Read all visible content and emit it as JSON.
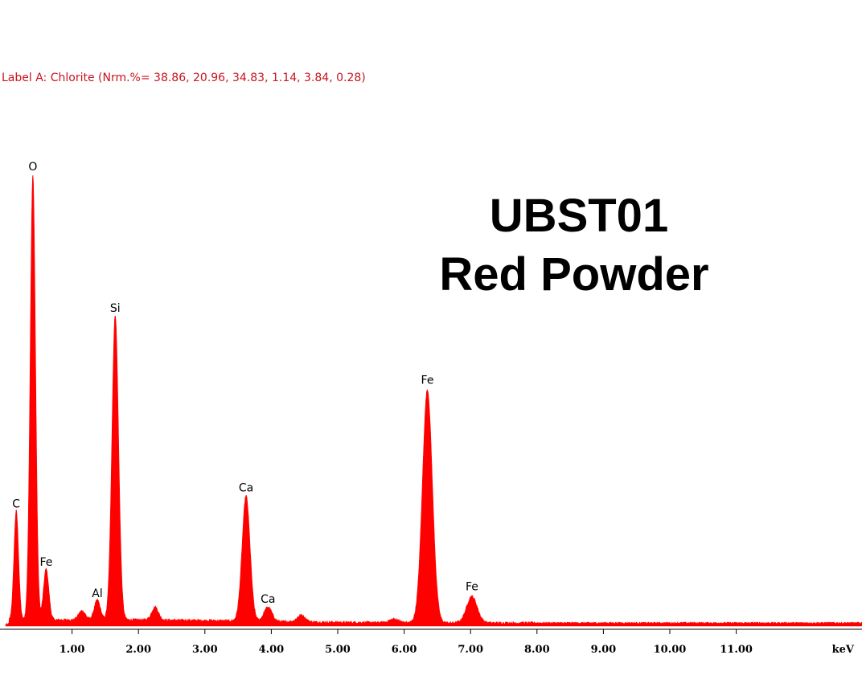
{
  "header": {
    "faint_line": "",
    "label_line": "Label A: Chlorite (Nrm.%= 38.86, 20.96, 34.83, 1.14, 3.84, 0.28)"
  },
  "title": {
    "line1": "UBST01",
    "line2": "Red Powder"
  },
  "colors": {
    "spectrum": "#ff0000",
    "label_text": "#c8141e",
    "axis": "#000000"
  },
  "chart_data": {
    "type": "area",
    "xlabel": "keV",
    "ylabel": "",
    "xlim": [
      0.0,
      12.7
    ],
    "ylim": [
      0,
      100
    ],
    "grid": false,
    "x_ticks": [
      {
        "value": 1.0,
        "label": "1.00"
      },
      {
        "value": 2.0,
        "label": "2.00"
      },
      {
        "value": 3.0,
        "label": "3.00"
      },
      {
        "value": 4.0,
        "label": "4.00"
      },
      {
        "value": 5.0,
        "label": "5.00"
      },
      {
        "value": 6.0,
        "label": "6.00"
      },
      {
        "value": 7.0,
        "label": "7.00"
      },
      {
        "value": 8.0,
        "label": "8.00"
      },
      {
        "value": 9.0,
        "label": "9.00"
      },
      {
        "value": 10.0,
        "label": "10.00"
      },
      {
        "value": 11.0,
        "label": "11.00"
      }
    ],
    "peaks": [
      {
        "element": "C",
        "energy": 0.16,
        "intensity": 25.0,
        "width": 0.035
      },
      {
        "element": "O",
        "energy": 0.41,
        "intensity": 100.0,
        "width": 0.04
      },
      {
        "element": "Fe",
        "energy": 0.61,
        "intensity": 12.0,
        "width": 0.04
      },
      {
        "element": "Al",
        "energy": 1.38,
        "intensity": 5.0,
        "width": 0.045
      },
      {
        "element": "Si",
        "energy": 1.65,
        "intensity": 68.5,
        "width": 0.05
      },
      {
        "element": "Ca",
        "energy": 3.62,
        "intensity": 28.5,
        "width": 0.06
      },
      {
        "element": "Ca",
        "energy": 3.95,
        "intensity": 3.8,
        "width": 0.06
      },
      {
        "element": "Fe",
        "energy": 6.35,
        "intensity": 52.5,
        "width": 0.075
      },
      {
        "element": "Fe",
        "energy": 7.02,
        "intensity": 6.5,
        "width": 0.08
      }
    ],
    "minor_peaks": [
      {
        "energy": 1.15,
        "intensity": 2.0,
        "width": 0.05
      },
      {
        "energy": 2.25,
        "intensity": 3.5,
        "width": 0.05
      },
      {
        "energy": 4.45,
        "intensity": 1.5,
        "width": 0.06
      },
      {
        "energy": 5.85,
        "intensity": 0.8,
        "width": 0.07
      }
    ],
    "background_level": 1.2
  }
}
